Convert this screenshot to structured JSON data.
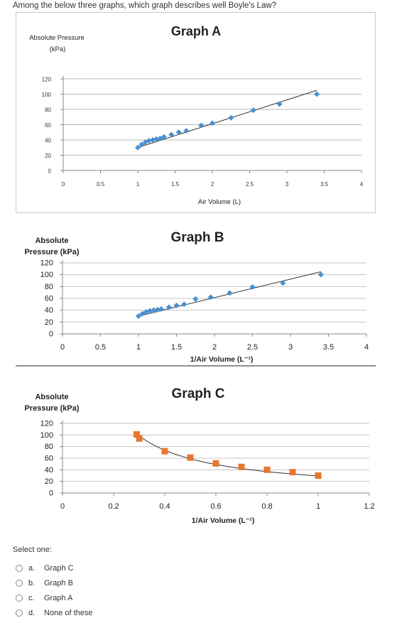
{
  "question": "Among the below three graphs, which graph describes well Boyle's Law?",
  "prompt": "Select one:",
  "options": [
    {
      "letter": "a.",
      "label": "Graph C"
    },
    {
      "letter": "b.",
      "label": "Graph B"
    },
    {
      "letter": "c.",
      "label": "Graph A"
    },
    {
      "letter": "d.",
      "label": "None of these"
    }
  ],
  "chart_data": [
    {
      "type": "scatter",
      "title": "Graph A",
      "ylabel": "Absolute Pressure (kPa)",
      "xlabel": "Air Volume (L)",
      "xlim": [
        0,
        4
      ],
      "ylim": [
        0,
        120
      ],
      "xticks": [
        "0",
        "0.5",
        "1",
        "1.5",
        "2",
        "2.5",
        "3",
        "3.5",
        "4"
      ],
      "yticks": [
        "0",
        "20",
        "40",
        "60",
        "80",
        "100",
        "120"
      ],
      "grid": true,
      "marker_color": "#4a8fd0",
      "points": [
        [
          1.0,
          30
        ],
        [
          1.05,
          34
        ],
        [
          1.1,
          37
        ],
        [
          1.15,
          39
        ],
        [
          1.2,
          40
        ],
        [
          1.25,
          41
        ],
        [
          1.3,
          42
        ],
        [
          1.35,
          44
        ],
        [
          1.45,
          47
        ],
        [
          1.55,
          50
        ],
        [
          1.65,
          52
        ],
        [
          1.85,
          59
        ],
        [
          2.0,
          62
        ],
        [
          2.25,
          69
        ],
        [
          2.55,
          79
        ],
        [
          2.9,
          87
        ],
        [
          3.4,
          100
        ]
      ],
      "fit": [
        [
          1.0,
          30
        ],
        [
          3.4,
          105
        ]
      ]
    },
    {
      "type": "scatter",
      "title": "Graph B",
      "ylabel": "Absolute Pressure (kPa)",
      "xlabel": "1/Air Volume (L⁻¹)",
      "xlim": [
        0,
        4
      ],
      "ylim": [
        0,
        120
      ],
      "xticks": [
        "0",
        "0.5",
        "1",
        "1.5",
        "2",
        "2.5",
        "3",
        "3.5",
        "4"
      ],
      "yticks": [
        "0",
        "20",
        "40",
        "60",
        "80",
        "100",
        "120"
      ],
      "grid": true,
      "marker_color": "#4a8fd0",
      "points": [
        [
          1.0,
          30
        ],
        [
          1.05,
          34
        ],
        [
          1.1,
          37
        ],
        [
          1.15,
          39
        ],
        [
          1.2,
          40
        ],
        [
          1.25,
          41
        ],
        [
          1.3,
          42
        ],
        [
          1.4,
          45
        ],
        [
          1.5,
          48
        ],
        [
          1.6,
          50
        ],
        [
          1.75,
          59
        ],
        [
          1.95,
          62
        ],
        [
          2.2,
          69
        ],
        [
          2.5,
          79
        ],
        [
          2.9,
          86
        ],
        [
          3.4,
          100
        ]
      ],
      "fit": [
        [
          1.0,
          30
        ],
        [
          3.4,
          105
        ]
      ]
    },
    {
      "type": "scatter",
      "title": "Graph C",
      "ylabel": "Absolute Pressure (kPa)",
      "xlabel": "1/Air Volume (L⁻¹)",
      "xlim": [
        0,
        1.2
      ],
      "ylim": [
        0,
        120
      ],
      "xticks": [
        "0",
        "0.2",
        "0.4",
        "0.6",
        "0.8",
        "1",
        "1.2"
      ],
      "yticks": [
        "0",
        "20",
        "40",
        "60",
        "80",
        "100",
        "120"
      ],
      "grid": true,
      "marker_color": "#e8762d",
      "points": [
        [
          0.29,
          101
        ],
        [
          0.3,
          94
        ],
        [
          0.4,
          72
        ],
        [
          0.5,
          61
        ],
        [
          0.6,
          51
        ],
        [
          0.7,
          45
        ],
        [
          0.8,
          40
        ],
        [
          0.9,
          36
        ],
        [
          1.0,
          30
        ]
      ],
      "fit_curve": "inverse"
    }
  ]
}
